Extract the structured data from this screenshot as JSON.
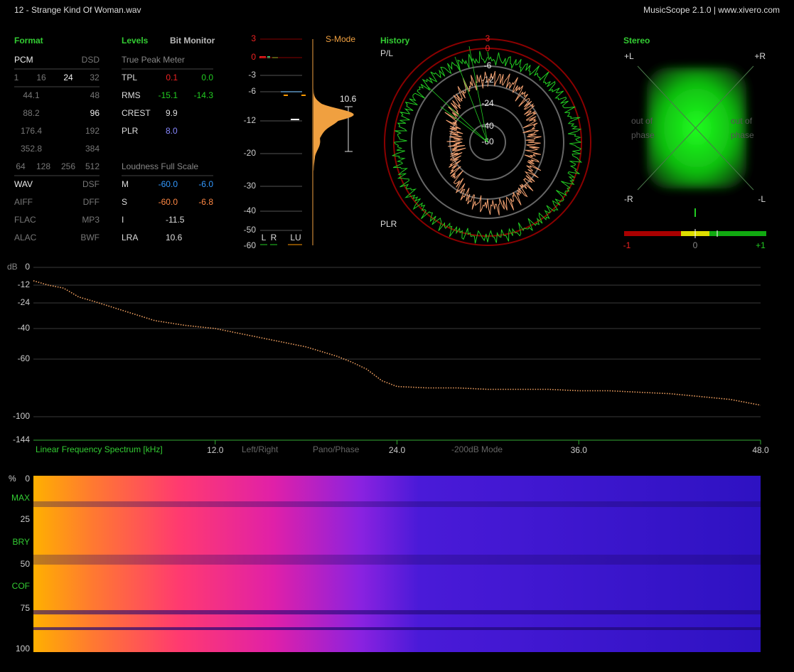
{
  "header": {
    "title": "12 - Strange Kind Of Woman.wav",
    "app": "MusicScope 2.1.0 | www.xivero.com"
  },
  "format": {
    "title": "Format",
    "rows": [
      [
        "PCM",
        "DSD"
      ],
      [
        "1",
        "16",
        "24",
        "32"
      ],
      [
        "44.1",
        "48"
      ],
      [
        "88.2",
        "96"
      ],
      [
        "176.4",
        "192"
      ],
      [
        "352.8",
        "384"
      ],
      [
        "64",
        "128",
        "256",
        "512"
      ],
      [
        "WAV",
        "DSF"
      ],
      [
        "AIFF",
        "DFF"
      ],
      [
        "FLAC",
        "MP3"
      ],
      [
        "ALAC",
        "BWF"
      ]
    ]
  },
  "levels": {
    "title": "Levels",
    "bit_monitor": "Bit Monitor",
    "true_peak_heading": "True Peak Meter",
    "true_peak_rows": [
      {
        "label": "TPL",
        "values": [
          "0.1",
          "0.0"
        ]
      },
      {
        "label": "RMS",
        "values": [
          "-15.1",
          "-14.3"
        ]
      },
      {
        "label": "CREST",
        "values": [
          "9.9"
        ]
      },
      {
        "label": "PLR",
        "values": [
          "8.0"
        ]
      }
    ],
    "loudness_heading": "Loudness Full Scale",
    "loudness_rows": [
      {
        "label": "M",
        "values": [
          "-60.0",
          "-6.0"
        ]
      },
      {
        "label": "S",
        "values": [
          "-60.0",
          "-6.8"
        ]
      },
      {
        "label": "I",
        "values": [
          "-11.5"
        ]
      },
      {
        "label": "LRA",
        "values": [
          "10.6"
        ]
      }
    ]
  },
  "meter": {
    "scale": [
      3,
      0,
      -3,
      -6,
      -12,
      -20,
      -30,
      -40,
      -50,
      -60
    ],
    "mode": "S-Mode",
    "lra": "10.6",
    "channels": [
      "L",
      "R",
      "LU"
    ]
  },
  "history": {
    "title": "History",
    "top_label": "P/L",
    "bottom_label": "PLR",
    "rings": [
      3,
      0,
      -6,
      -12,
      -24,
      -40,
      -60
    ]
  },
  "stereo": {
    "title": "Stereo",
    "corners": [
      "+L",
      "+R",
      "-R",
      "-L"
    ],
    "phase_left": [
      "out of",
      "phase"
    ],
    "phase_right": [
      "out of",
      "phase"
    ],
    "correlation_ticks": [
      "-1",
      "0",
      "+1"
    ]
  },
  "spectrum_controls": [
    "Left/Right",
    "Pano/Phase",
    "-200dB Mode"
  ],
  "chart_data": {
    "type": "line",
    "y_unit": "dB",
    "x_label": "Linear Frequency Spectrum [kHz]",
    "color": "#f0a060",
    "x": [
      0,
      1,
      2,
      3,
      4,
      6,
      8,
      10,
      12,
      14,
      16,
      18,
      20,
      21,
      22,
      23,
      24,
      26,
      28,
      30,
      32,
      34,
      36,
      38,
      40,
      42,
      44,
      46,
      48
    ],
    "values": [
      -9,
      -12,
      -14,
      -20,
      -23,
      -29,
      -35,
      -38,
      -40,
      -44,
      -48,
      -52,
      -58,
      -62,
      -67,
      -75,
      -79,
      -80,
      -80,
      -81,
      -81,
      -81,
      -82,
      -82,
      -83,
      -84,
      -86,
      -88,
      -92
    ],
    "xlim": [
      0,
      48
    ],
    "xticks": [
      {
        "value": 12,
        "label": "12.0"
      },
      {
        "value": 24,
        "label": "24.0"
      },
      {
        "value": 36,
        "label": "36.0"
      },
      {
        "value": 48,
        "label": "48.0"
      }
    ],
    "ylim": [
      -144,
      0
    ],
    "yticks": [
      0,
      -12,
      -24,
      -40,
      -60,
      -100,
      -144
    ],
    "grid": true
  },
  "spectrogram": {
    "axis_unit": "%",
    "labels": [
      "0",
      "MAX",
      "25",
      "BRY",
      "50",
      "COF",
      "75",
      "100"
    ]
  }
}
